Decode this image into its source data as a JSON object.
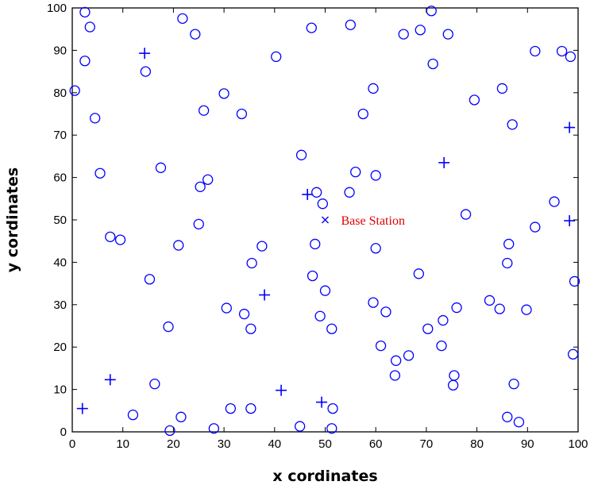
{
  "chart_data": {
    "type": "scatter",
    "title": "",
    "xlabel": "x cordinates",
    "ylabel": "y cordinates",
    "xlim": [
      0,
      100
    ],
    "ylim": [
      0,
      100
    ],
    "xticks": [
      0,
      10,
      20,
      30,
      40,
      50,
      60,
      70,
      80,
      90,
      100
    ],
    "yticks": [
      0,
      10,
      20,
      30,
      40,
      50,
      60,
      70,
      80,
      90,
      100
    ],
    "grid": false,
    "colors": {
      "marker": "#0000ff",
      "annotation": "#e00000",
      "axis": "#000000"
    },
    "series": [
      {
        "marker": "o",
        "points": [
          [
            2.5,
            99
          ],
          [
            3.5,
            95.5
          ],
          [
            2.5,
            87.5
          ],
          [
            0.5,
            80.5
          ],
          [
            4.5,
            74
          ],
          [
            5.5,
            61
          ],
          [
            7.5,
            46
          ],
          [
            9.5,
            45.3
          ],
          [
            14.5,
            85
          ],
          [
            17.5,
            62.3
          ],
          [
            15.3,
            36
          ],
          [
            19,
            24.8
          ],
          [
            16.3,
            11.3
          ],
          [
            12,
            4
          ],
          [
            19.3,
            0.3
          ],
          [
            21.5,
            3.5
          ],
          [
            21,
            44
          ],
          [
            21.8,
            97.5
          ],
          [
            24.3,
            93.8
          ],
          [
            25.3,
            57.8
          ],
          [
            26.8,
            59.5
          ],
          [
            26,
            75.8
          ],
          [
            25,
            49
          ],
          [
            30,
            79.8
          ],
          [
            30.5,
            29.2
          ],
          [
            31.3,
            5.5
          ],
          [
            28,
            0.8
          ],
          [
            33.5,
            75
          ],
          [
            34,
            27.8
          ],
          [
            35.5,
            39.8
          ],
          [
            35.3,
            24.3
          ],
          [
            35.3,
            5.5
          ],
          [
            37.5,
            43.8
          ],
          [
            40.3,
            88.5
          ],
          [
            45.3,
            65.3
          ],
          [
            47.3,
            95.3
          ],
          [
            48.3,
            56.5
          ],
          [
            49.5,
            53.8
          ],
          [
            48,
            44.3
          ],
          [
            47.5,
            36.8
          ],
          [
            50,
            33.3
          ],
          [
            49,
            27.3
          ],
          [
            51.3,
            24.3
          ],
          [
            55,
            96
          ],
          [
            54.8,
            56.5
          ],
          [
            56,
            61.3
          ],
          [
            57.5,
            75
          ],
          [
            59.5,
            81
          ],
          [
            60,
            60.5
          ],
          [
            60,
            43.3
          ],
          [
            59.5,
            30.5
          ],
          [
            62,
            28.3
          ],
          [
            61,
            20.3
          ],
          [
            64,
            16.8
          ],
          [
            63.8,
            13.3
          ],
          [
            66.5,
            18
          ],
          [
            65.5,
            93.8
          ],
          [
            68.8,
            94.8
          ],
          [
            71,
            99.3
          ],
          [
            71.3,
            86.8
          ],
          [
            74.3,
            93.8
          ],
          [
            68.5,
            37.3
          ],
          [
            70.3,
            24.3
          ],
          [
            73.3,
            26.3
          ],
          [
            73,
            20.3
          ],
          [
            75.5,
            13.3
          ],
          [
            75.3,
            11
          ],
          [
            76,
            29.3
          ],
          [
            77.8,
            51.3
          ],
          [
            79.5,
            78.3
          ],
          [
            85,
            81
          ],
          [
            87,
            72.5
          ],
          [
            86.3,
            44.3
          ],
          [
            86,
            39.8
          ],
          [
            82.5,
            31
          ],
          [
            84.5,
            29
          ],
          [
            89.8,
            28.8
          ],
          [
            87.3,
            11.3
          ],
          [
            86,
            3.5
          ],
          [
            88.3,
            2.3
          ],
          [
            91.5,
            89.8
          ],
          [
            91.5,
            48.3
          ],
          [
            95.3,
            54.3
          ],
          [
            96.8,
            89.8
          ],
          [
            98.5,
            88.5
          ],
          [
            99,
            18.3
          ],
          [
            99.3,
            35.5
          ],
          [
            51.5,
            5.5
          ],
          [
            51.3,
            0.8
          ],
          [
            45,
            1.3
          ]
        ]
      },
      {
        "marker": "+",
        "points": [
          [
            14.3,
            89.3
          ],
          [
            2,
            5.5
          ],
          [
            7.5,
            12.3
          ],
          [
            38,
            32.3
          ],
          [
            41.3,
            9.8
          ],
          [
            46.5,
            56
          ],
          [
            49.3,
            7
          ],
          [
            73.5,
            63.5
          ],
          [
            98.3,
            71.8
          ],
          [
            98.3,
            49.8
          ]
        ]
      },
      {
        "marker": "x",
        "points": [
          [
            50,
            50
          ]
        ]
      }
    ],
    "annotations": [
      {
        "text": "Base Station",
        "x": 50,
        "y": 50
      }
    ]
  }
}
